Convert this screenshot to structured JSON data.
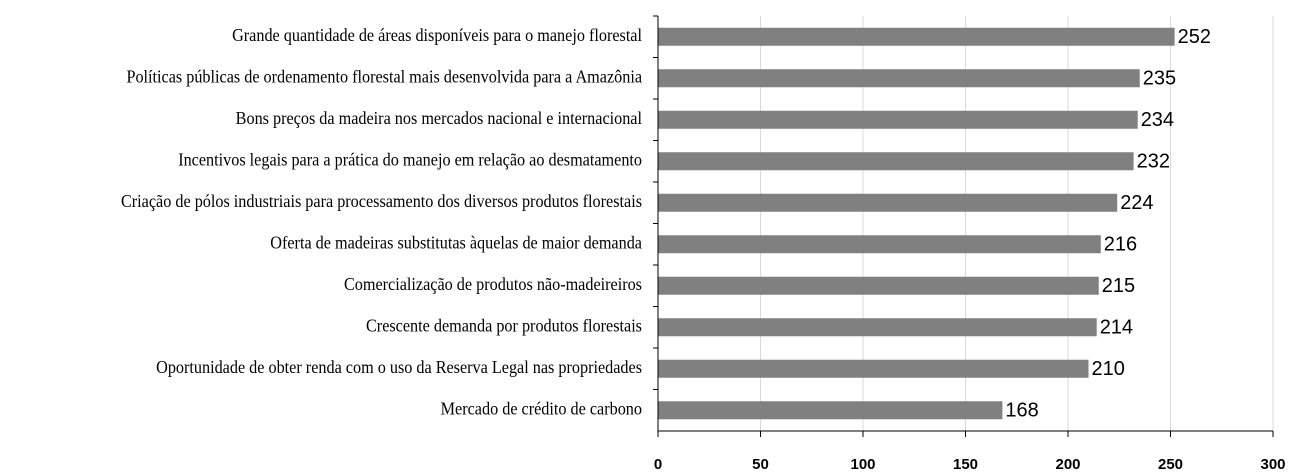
{
  "chart_data": {
    "type": "bar",
    "orientation": "horizontal",
    "categories": [
      "Grande quantidade de áreas disponíveis para o manejo florestal",
      "Políticas públicas de ordenamento florestal mais desenvolvida para a Amazônia",
      "Bons preços da madeira nos mercados nacional e internacional",
      "Incentivos legais para a prática do manejo em relação ao desmatamento",
      "Criação de pólos industriais para processamento dos diversos produtos florestais",
      "Oferta de madeiras substitutas àquelas de maior demanda",
      "Comercialização de produtos não-madeireiros",
      "Crescente demanda por produtos florestais",
      "Oportunidade de obter renda com o uso da Reserva Legal nas propriedades",
      "Mercado de crédito de carbono"
    ],
    "values": [
      252,
      235,
      234,
      232,
      224,
      216,
      215,
      214,
      210,
      168
    ],
    "color": "#808080",
    "xlim": [
      0,
      300
    ],
    "xticks": [
      0,
      50,
      100,
      150,
      200,
      250,
      300
    ],
    "grid": true
  }
}
